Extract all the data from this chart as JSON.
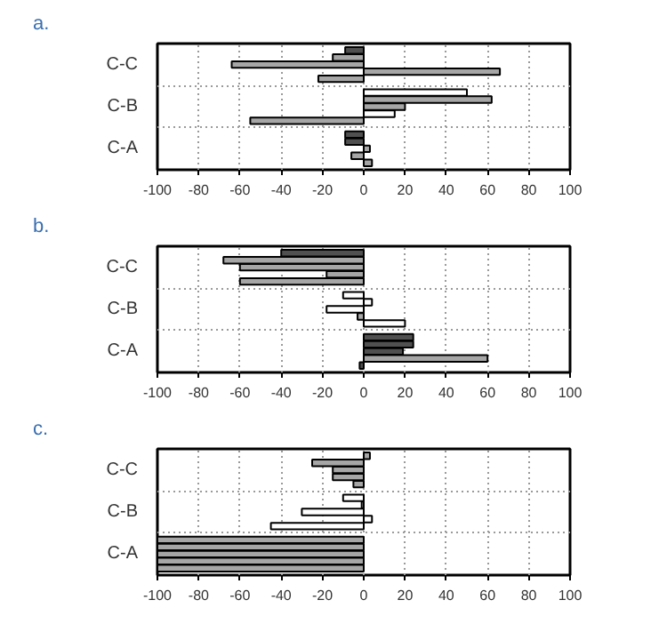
{
  "chart_data": [
    {
      "type": "bar",
      "orientation": "horizontal",
      "title": "a.",
      "categories": [
        "C-C",
        "C-B",
        "C-A"
      ],
      "xlim": [
        -100,
        100
      ],
      "xticks": [
        -100,
        -80,
        -60,
        -40,
        -20,
        0,
        20,
        40,
        60,
        80,
        100
      ],
      "grid": true,
      "series": [
        {
          "values": [
            -9,
            50,
            -9
          ],
          "colors": [
            "#505050",
            "#ffffff",
            "#505050"
          ]
        },
        {
          "values": [
            -15,
            62,
            -9
          ],
          "colors": [
            "#a6a6a6",
            "#a6a6a6",
            "#505050"
          ]
        },
        {
          "values": [
            -64,
            20,
            3
          ],
          "colors": [
            "#a6a6a6",
            "#a6a6a6",
            "#a6a6a6"
          ]
        },
        {
          "values": [
            66,
            15,
            -6
          ],
          "colors": [
            "#a6a6a6",
            "#ffffff",
            "#a6a6a6"
          ]
        },
        {
          "values": [
            -22,
            -55,
            4
          ],
          "colors": [
            "#a6a6a6",
            "#a6a6a6",
            "#a6a6a6"
          ]
        }
      ]
    },
    {
      "type": "bar",
      "orientation": "horizontal",
      "title": "b.",
      "categories": [
        "C-C",
        "C-B",
        "C-A"
      ],
      "xlim": [
        -100,
        100
      ],
      "xticks": [
        -100,
        -80,
        -60,
        -40,
        -20,
        0,
        20,
        40,
        60,
        80,
        100
      ],
      "grid": true,
      "series": [
        {
          "values": [
            -40,
            -10,
            24
          ],
          "colors": [
            "#505050",
            "#ffffff",
            "#505050"
          ]
        },
        {
          "values": [
            -68,
            4,
            24
          ],
          "colors": [
            "#a6a6a6",
            "#ffffff",
            "#505050"
          ]
        },
        {
          "values": [
            -60,
            -18,
            19
          ],
          "colors": [
            "#a6a6a6",
            "#ffffff",
            "#505050"
          ]
        },
        {
          "values": [
            -18,
            -3,
            60
          ],
          "colors": [
            "#a6a6a6",
            "#a6a6a6",
            "#a6a6a6"
          ]
        },
        {
          "values": [
            -60,
            20,
            -2
          ],
          "colors": [
            "#a6a6a6",
            "#ffffff",
            "#505050"
          ]
        }
      ]
    },
    {
      "type": "bar",
      "orientation": "horizontal",
      "title": "c.",
      "categories": [
        "C-C",
        "C-B",
        "C-A"
      ],
      "xlim": [
        -100,
        100
      ],
      "xticks": [
        -100,
        -80,
        -60,
        -40,
        -20,
        0,
        20,
        40,
        60,
        80,
        100
      ],
      "grid": true,
      "series": [
        {
          "values": [
            3,
            -10,
            -100
          ],
          "colors": [
            "#a6a6a6",
            "#ffffff",
            "#a6a6a6"
          ]
        },
        {
          "values": [
            -25,
            -1,
            -100
          ],
          "colors": [
            "#a6a6a6",
            "#ffffff",
            "#a6a6a6"
          ]
        },
        {
          "values": [
            -15,
            -30,
            -100
          ],
          "colors": [
            "#a6a6a6",
            "#ffffff",
            "#a6a6a6"
          ]
        },
        {
          "values": [
            -15,
            4,
            -100
          ],
          "colors": [
            "#a6a6a6",
            "#ffffff",
            "#a6a6a6"
          ]
        },
        {
          "values": [
            -5,
            -45,
            -100
          ],
          "colors": [
            "#a6a6a6",
            "#ffffff",
            "#a6a6a6"
          ]
        }
      ]
    }
  ]
}
